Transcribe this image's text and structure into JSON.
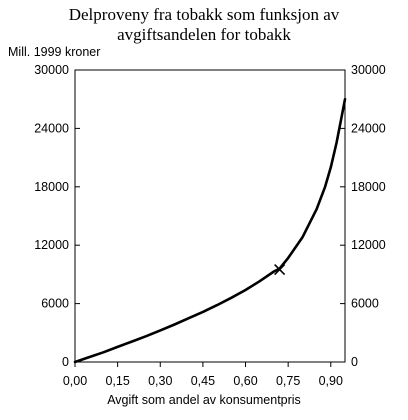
{
  "chart_data": {
    "type": "line",
    "title_lines": [
      "Delproveny fra tobakk som funksjon av",
      "avgiftsandelen for tobakk"
    ],
    "ylabel": "Mill. 1999 kroner",
    "xlabel": "Avgift som andel av konsumentpris",
    "xlim": [
      0,
      0.95
    ],
    "ylim": [
      0,
      30000
    ],
    "x_ticks": [
      0,
      0.15,
      0.3,
      0.45,
      0.6,
      0.75,
      0.9
    ],
    "x_tick_labels": [
      "0,00",
      "0,15",
      "0,30",
      "0,45",
      "0,60",
      "0,75",
      "0,90"
    ],
    "y_ticks": [
      0,
      6000,
      12000,
      18000,
      24000,
      30000
    ],
    "y_tick_labels": [
      "0",
      "6000",
      "12000",
      "18000",
      "24000",
      "30000"
    ],
    "secondary_y_axis": true,
    "grid": false,
    "series": [
      {
        "x": [
          0.0,
          0.05,
          0.1,
          0.15,
          0.2,
          0.25,
          0.3,
          0.35,
          0.4,
          0.45,
          0.5,
          0.55,
          0.6,
          0.65,
          0.7,
          0.72,
          0.75,
          0.8,
          0.85,
          0.88,
          0.9,
          0.92,
          0.94,
          0.95
        ],
        "y": [
          0,
          500,
          1000,
          1550,
          2100,
          2650,
          3250,
          3850,
          4500,
          5150,
          5850,
          6600,
          7400,
          8300,
          9300,
          9600,
          10700,
          12800,
          15700,
          18000,
          20000,
          22500,
          25500,
          27000
        ],
        "color": "#000000"
      }
    ],
    "markers": [
      {
        "x": 0.72,
        "y": 9500,
        "symbol": "x"
      }
    ]
  }
}
